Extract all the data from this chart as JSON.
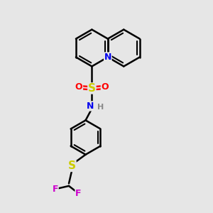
{
  "bg_color": "#e6e6e6",
  "atom_colors": {
    "C": "#000000",
    "N": "#0000ee",
    "S": "#cccc00",
    "O": "#ff0000",
    "F": "#cc00cc",
    "H": "#888888"
  },
  "bond_color": "#000000",
  "bond_width": 1.8,
  "figsize": [
    3.0,
    3.0
  ],
  "dpi": 100
}
